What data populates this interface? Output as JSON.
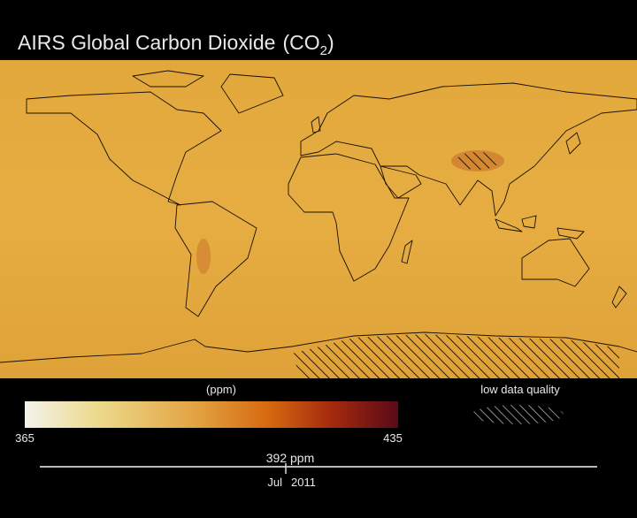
{
  "title": {
    "main": "AIRS Global Carbon Dioxide",
    "formula_open": "(CO",
    "formula_sub": "2",
    "formula_close": ")"
  },
  "colorbar": {
    "unit": "(ppm)",
    "min_label": "365",
    "max_label": "435"
  },
  "quality_legend": {
    "label": "low data quality"
  },
  "readout": "392 ppm",
  "timeline": {
    "month": "Jul",
    "year": "2011"
  }
}
